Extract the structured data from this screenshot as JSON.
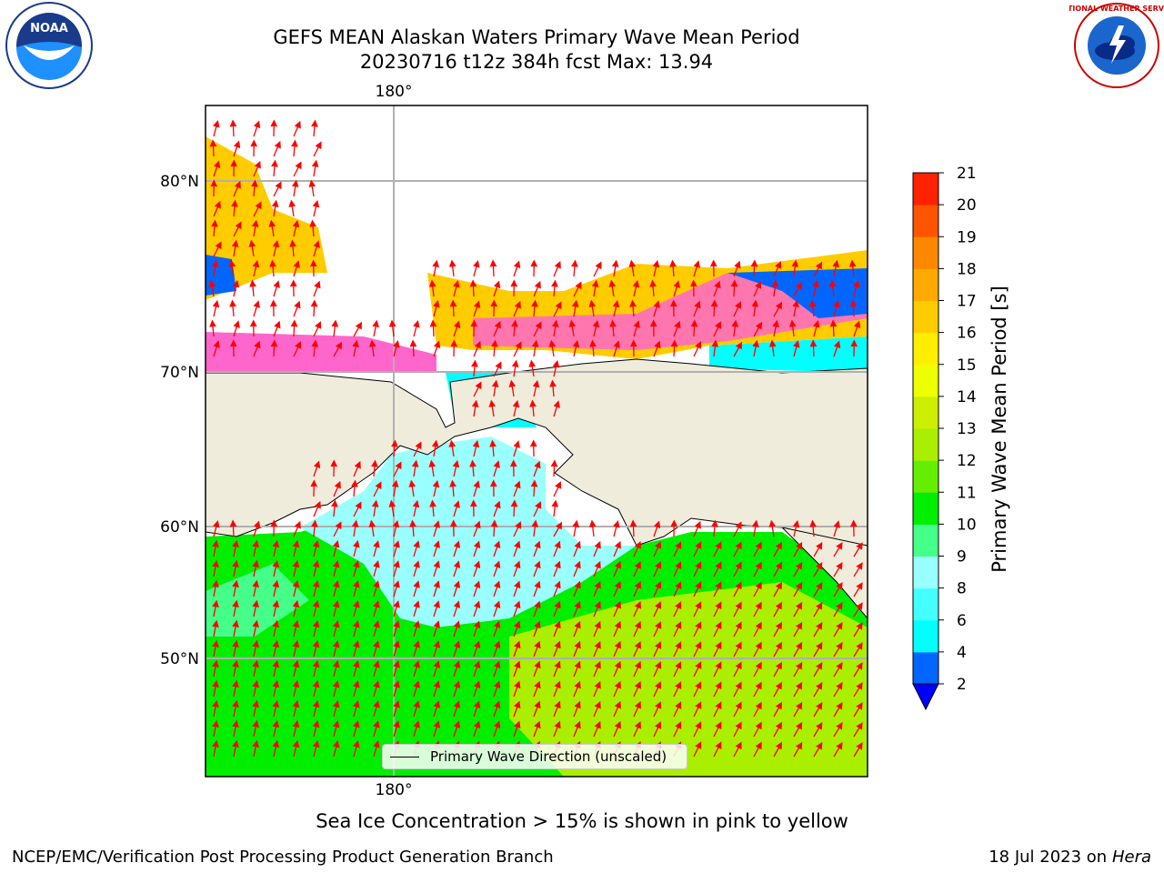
{
  "header": {
    "title_line1": "GEFS MEAN Alaskan Waters Primary Wave Mean Period",
    "title_line2": "20230716 t12z 384h fcst   Max: 13.94"
  },
  "map": {
    "lon_label_top": "180°",
    "lon_label_bottom": "180°",
    "lat_labels": [
      "80°N",
      "70°N",
      "60°N",
      "50°N"
    ],
    "legend_label": "Primary Wave Direction (unscaled)",
    "arrow_color": "#ff0000",
    "land_color": "#efecdc",
    "gridline_color": "#b0b0b0"
  },
  "colorbar": {
    "label": "Primary Wave Mean Period [s]",
    "tick_labels": [
      "2",
      "4",
      "6",
      "8",
      "9",
      "10",
      "11",
      "12",
      "13",
      "14",
      "15",
      "16",
      "17",
      "18",
      "19",
      "20",
      "21"
    ],
    "colors": [
      "#0066ff",
      "#00ffff",
      "#44ffff",
      "#99ffff",
      "#44ff88",
      "#00ee00",
      "#66ee00",
      "#aaee00",
      "#ccee00",
      "#eeff00",
      "#ffee00",
      "#ffcc00",
      "#ffaa00",
      "#ff8800",
      "#ff5500",
      "#ff2200"
    ],
    "under_color": "#0000ff"
  },
  "caption": "Sea Ice Concentration > 15% is shown in pink to yellow",
  "footer": {
    "left": "NCEP/EMC/Verification Post Processing Product Generation Branch",
    "right_date": "18 Jul 2023 on",
    "right_machine": "Hera"
  },
  "logos": {
    "noaa_text": "NOAA",
    "nws_text": "NATIONAL WEATHER SERVICE"
  }
}
